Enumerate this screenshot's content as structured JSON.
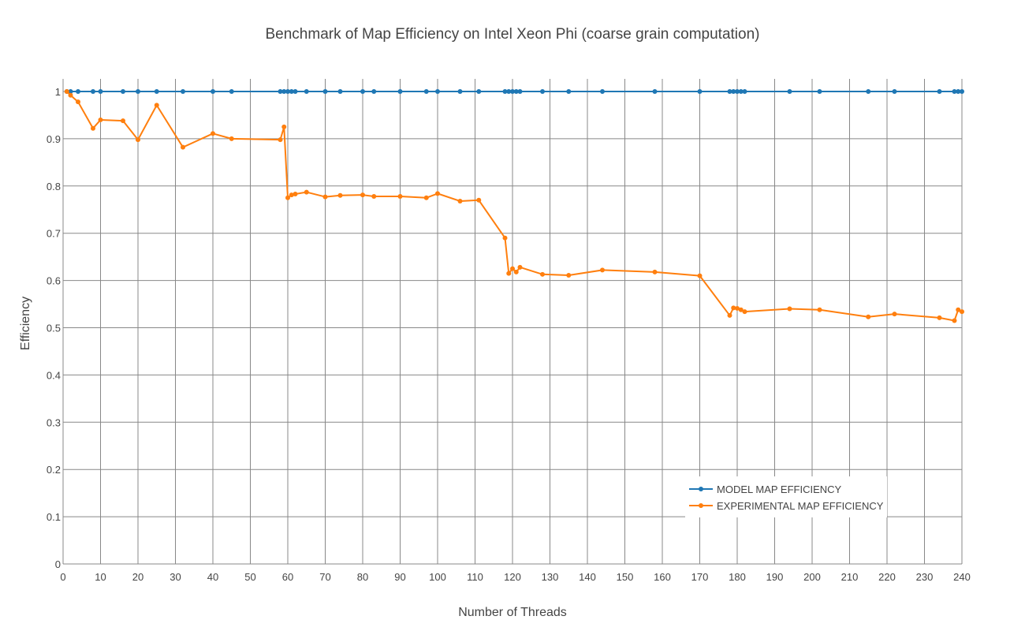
{
  "chart_data": {
    "type": "line",
    "title": "Benchmark of Map Efficiency on Intel Xeon Phi (coarse grain computation)",
    "xlabel": "Number of Threads",
    "ylabel": "Efficiency",
    "xlim": [
      0,
      240
    ],
    "ylim": [
      0,
      1
    ],
    "xticks": [
      0,
      10,
      20,
      30,
      40,
      50,
      60,
      70,
      80,
      90,
      100,
      110,
      120,
      130,
      140,
      150,
      160,
      170,
      180,
      190,
      200,
      210,
      220,
      230,
      240
    ],
    "yticks": [
      0,
      0.1,
      0.2,
      0.3,
      0.4,
      0.5,
      0.6,
      0.7,
      0.8,
      0.9,
      1
    ],
    "ytick_labels": [
      "0",
      "0.1",
      "0.2",
      "0.3",
      "0.4",
      "0.5",
      "0.6",
      "0.7",
      "0.8",
      "0.9",
      "1"
    ],
    "grid": true,
    "legend_position": "bottom-right",
    "series": [
      {
        "name": "MODEL MAP EFFICIENCY",
        "color": "#1f77b4",
        "x": [
          1,
          2,
          4,
          8,
          10,
          16,
          20,
          25,
          32,
          40,
          45,
          58,
          59,
          60,
          61,
          62,
          65,
          70,
          74,
          80,
          83,
          90,
          97,
          100,
          106,
          111,
          118,
          119,
          120,
          121,
          122,
          128,
          135,
          144,
          158,
          170,
          178,
          179,
          180,
          181,
          182,
          194,
          202,
          215,
          222,
          234,
          238,
          239,
          240
        ],
        "y": [
          1,
          1,
          1,
          1,
          1,
          1,
          1,
          1,
          1,
          1,
          1,
          1,
          1,
          1,
          1,
          1,
          1,
          1,
          1,
          1,
          1,
          1,
          1,
          1,
          1,
          1,
          1,
          1,
          1,
          1,
          1,
          1,
          1,
          1,
          1,
          1,
          1,
          1,
          1,
          1,
          1,
          1,
          1,
          1,
          1,
          1,
          1,
          1,
          1
        ]
      },
      {
        "name": "EXPERIMENTAL MAP EFFICIENCY",
        "color": "#ff7f0e",
        "x": [
          1,
          2,
          4,
          8,
          10,
          16,
          20,
          25,
          32,
          40,
          45,
          58,
          59,
          60,
          61,
          62,
          65,
          70,
          74,
          80,
          83,
          90,
          97,
          100,
          106,
          111,
          118,
          119,
          120,
          121,
          122,
          128,
          135,
          144,
          158,
          170,
          178,
          179,
          180,
          181,
          182,
          194,
          202,
          215,
          222,
          234,
          238,
          239,
          240
        ],
        "y": [
          1.0,
          0.992,
          0.978,
          0.922,
          0.94,
          0.938,
          0.898,
          0.971,
          0.882,
          0.911,
          0.9,
          0.898,
          0.925,
          0.775,
          0.781,
          0.783,
          0.787,
          0.777,
          0.78,
          0.781,
          0.778,
          0.778,
          0.775,
          0.784,
          0.768,
          0.77,
          0.69,
          0.615,
          0.625,
          0.618,
          0.628,
          0.613,
          0.611,
          0.622,
          0.618,
          0.61,
          0.526,
          0.542,
          0.541,
          0.538,
          0.534,
          0.54,
          0.538,
          0.523,
          0.529,
          0.521,
          0.515,
          0.538,
          0.534
        ]
      }
    ]
  }
}
